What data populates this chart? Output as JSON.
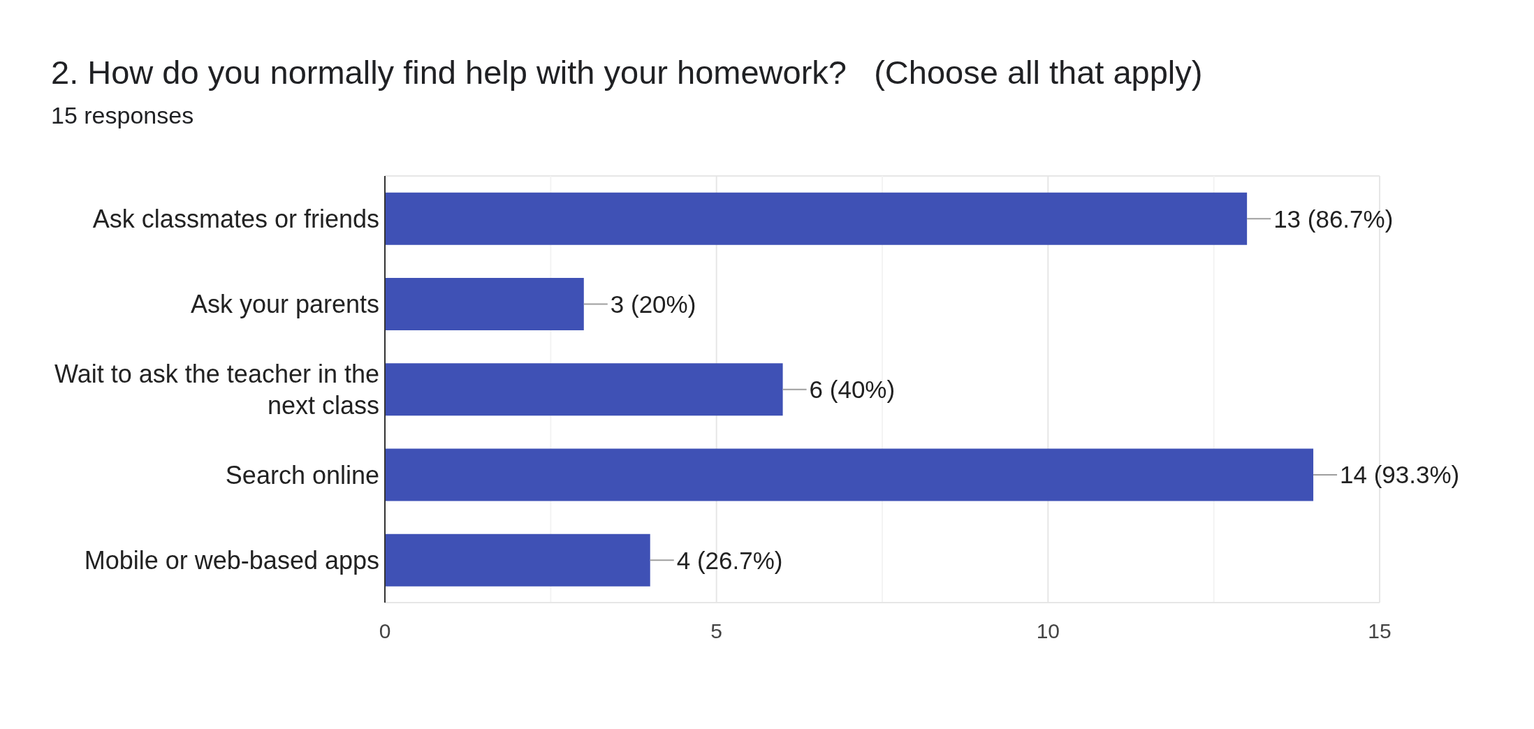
{
  "chart_data": {
    "type": "bar",
    "orientation": "horizontal",
    "title": "2. How do you normally find help with your homework?   (Choose all that apply)",
    "subtitle": "15 responses",
    "categories": [
      "Ask classmates or friends",
      "Ask your parents",
      "Wait to ask the teacher in the next class",
      "Search online",
      "Mobile or web-based apps"
    ],
    "values": [
      13,
      3,
      6,
      14,
      4
    ],
    "color": "#3f51b5",
    "value_labels": [
      "13 (86.7%)",
      "3 (20%)",
      "6 (40%)",
      "14 (93.3%)",
      "4 (26.7%)"
    ],
    "xlim": [
      0,
      15
    ],
    "xticks": [
      0,
      {
        "value": 2.5,
        "label": null
      },
      5,
      {
        "value": 7.5,
        "label": null
      },
      10,
      {
        "value": 12.5,
        "label": null
      },
      15
    ],
    "grid": "x"
  }
}
